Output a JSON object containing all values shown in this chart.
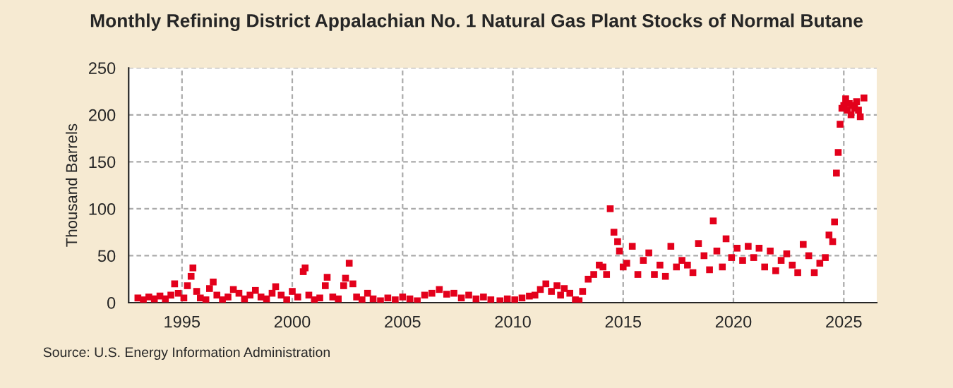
{
  "chart_data": {
    "type": "scatter",
    "title": "Monthly Refining District Appalachian No. 1 Natural Gas Plant Stocks of Normal Butane",
    "ylabel": "Thousand Barrels",
    "annotations": [
      "Source: U.S. Energy Information Administration"
    ],
    "x": [
      "1993-01",
      "1993-04",
      "1993-07",
      "1993-10",
      "1994-01",
      "1994-04",
      "1994-07",
      "1994-09",
      "1994-11",
      "1995-02",
      "1995-04",
      "1995-06",
      "1995-07",
      "1995-09",
      "1995-11",
      "1996-02",
      "1996-04",
      "1996-06",
      "1996-08",
      "1996-11",
      "1997-02",
      "1997-05",
      "1997-08",
      "1997-11",
      "1998-02",
      "1998-05",
      "1998-08",
      "1998-11",
      "1999-02",
      "1999-04",
      "1999-07",
      "1999-10",
      "2000-01",
      "2000-04",
      "2000-07",
      "2000-08",
      "2000-10",
      "2001-01",
      "2001-04",
      "2001-07",
      "2001-08",
      "2001-11",
      "2002-02",
      "2002-05",
      "2002-06",
      "2002-08",
      "2002-10",
      "2002-12",
      "2003-03",
      "2003-06",
      "2003-09",
      "2004-01",
      "2004-05",
      "2004-09",
      "2005-01",
      "2005-05",
      "2005-09",
      "2006-01",
      "2006-05",
      "2006-09",
      "2007-01",
      "2007-05",
      "2007-09",
      "2008-01",
      "2008-05",
      "2008-09",
      "2009-01",
      "2009-06",
      "2009-10",
      "2010-02",
      "2010-06",
      "2010-10",
      "2011-01",
      "2011-04",
      "2011-07",
      "2011-10",
      "2012-01",
      "2012-03",
      "2012-05",
      "2012-08",
      "2012-11",
      "2013-01",
      "2013-03",
      "2013-06",
      "2013-09",
      "2013-12",
      "2014-02",
      "2014-04",
      "2014-06",
      "2014-08",
      "2014-10",
      "2014-11",
      "2015-01",
      "2015-03",
      "2015-06",
      "2015-09",
      "2015-12",
      "2016-03",
      "2016-06",
      "2016-09",
      "2016-12",
      "2017-03",
      "2017-06",
      "2017-09",
      "2017-12",
      "2018-03",
      "2018-06",
      "2018-09",
      "2018-12",
      "2019-02",
      "2019-04",
      "2019-07",
      "2019-09",
      "2019-12",
      "2020-03",
      "2020-06",
      "2020-09",
      "2020-12",
      "2021-03",
      "2021-06",
      "2021-09",
      "2021-12",
      "2022-03",
      "2022-06",
      "2022-09",
      "2022-12",
      "2023-03",
      "2023-06",
      "2023-09",
      "2023-12",
      "2024-03",
      "2024-05",
      "2024-07",
      "2024-08",
      "2024-09",
      "2024-10",
      "2024-11",
      "2024-12",
      "2025-01",
      "2025-02",
      "2025-03",
      "2025-04",
      "2025-05",
      "2025-06",
      "2025-07",
      "2025-08",
      "2025-09",
      "2025-10",
      "2025-12"
    ],
    "series": [
      {
        "color": "#e3001b",
        "values": [
          5,
          3,
          6,
          4,
          7,
          4,
          8,
          20,
          10,
          5,
          18,
          28,
          37,
          12,
          5,
          3,
          15,
          22,
          8,
          3,
          6,
          14,
          10,
          4,
          8,
          13,
          6,
          4,
          10,
          17,
          8,
          3,
          12,
          6,
          33,
          37,
          8,
          3,
          5,
          18,
          27,
          6,
          4,
          18,
          26,
          42,
          20,
          6,
          3,
          10,
          4,
          2,
          5,
          3,
          6,
          4,
          2,
          8,
          10,
          14,
          9,
          10,
          5,
          8,
          4,
          6,
          3,
          2,
          4,
          3,
          5,
          7,
          8,
          14,
          20,
          12,
          18,
          8,
          15,
          10,
          3,
          2,
          12,
          25,
          30,
          40,
          38,
          30,
          100,
          75,
          65,
          55,
          38,
          42,
          60,
          30,
          45,
          53,
          30,
          40,
          28,
          60,
          38,
          45,
          40,
          32,
          63,
          50,
          35,
          87,
          55,
          38,
          68,
          48,
          58,
          45,
          60,
          48,
          58,
          38,
          55,
          34,
          45,
          52,
          40,
          32,
          62,
          50,
          32,
          42,
          48,
          72,
          65,
          86,
          138,
          160,
          190,
          207,
          210,
          217,
          205,
          212,
          200,
          210,
          207,
          214,
          205,
          198,
          218
        ]
      }
    ],
    "marker": "square",
    "xlim": [
      "1992-08",
      "2026-07"
    ],
    "xticks": [
      "1995",
      "2000",
      "2005",
      "2010",
      "2015",
      "2020",
      "2025"
    ],
    "ylim": [
      0,
      250
    ],
    "yticks": [
      0,
      50,
      100,
      150,
      200,
      250
    ],
    "grid": true,
    "legend": false
  }
}
